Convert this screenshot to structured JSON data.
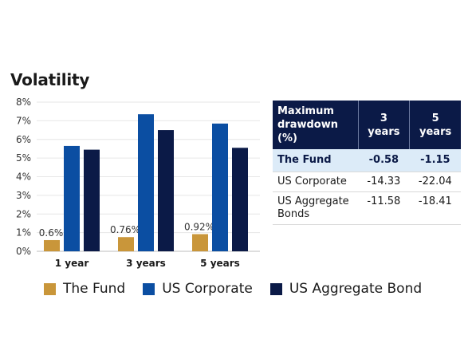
{
  "chart_data": {
    "type": "bar",
    "title": "Volatility",
    "categories": [
      "1 year",
      "3 years",
      "5 years"
    ],
    "series": [
      {
        "name": "The Fund",
        "values": [
          0.6,
          0.76,
          0.92
        ],
        "labels": [
          "0.6%",
          "0.76%",
          "0.92%"
        ],
        "color": "#c9963a"
      },
      {
        "name": "US Corporate",
        "values": [
          5.65,
          7.35,
          6.85
        ],
        "color": "#0b4ea2"
      },
      {
        "name": "US Aggregate Bond",
        "values": [
          5.45,
          6.5,
          5.55
        ],
        "color": "#0b1a47"
      }
    ],
    "y_ticks": [
      "0%",
      "1%",
      "2%",
      "3%",
      "4%",
      "5%",
      "6%",
      "7%",
      "8%"
    ],
    "ylim": [
      0,
      8
    ],
    "legend": "bottom"
  },
  "table": {
    "header": {
      "label": "Maximum drawdown (%)",
      "col1": "3 years",
      "col2": "5 years"
    },
    "rows": [
      {
        "name": "The Fund",
        "v1": "-0.58",
        "v2": "-1.15",
        "highlight": true
      },
      {
        "name": "US Corporate",
        "v1": "-14.33",
        "v2": "-22.04"
      },
      {
        "name": "US Aggregate Bonds",
        "v1": "-11.58",
        "v2": "-18.41"
      }
    ]
  },
  "colors": {
    "header_bg": "#0b1a47",
    "highlight_bg": "#dcebf8"
  }
}
